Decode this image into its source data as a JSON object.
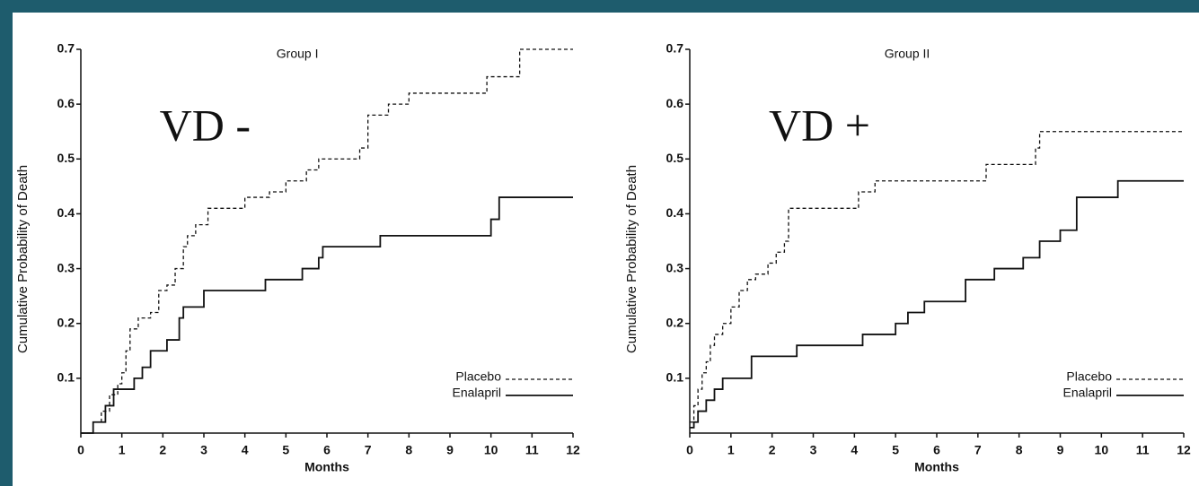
{
  "chart_data": [
    {
      "type": "line",
      "step": true,
      "title": "Group I",
      "annotation": "VD -",
      "xlabel": "Months",
      "ylabel": "Cumulative Probability of Death",
      "xlim": [
        0,
        12
      ],
      "xticks": [
        0,
        1,
        2,
        3,
        4,
        5,
        6,
        7,
        8,
        9,
        10,
        11,
        12
      ],
      "ylim": [
        0,
        0.7
      ],
      "yticks": [
        0.1,
        0.2,
        0.3,
        0.4,
        0.5,
        0.6,
        0.7
      ],
      "legend": "lower right",
      "series": [
        {
          "name": "Placebo",
          "color": "#111111",
          "style": "dashed",
          "x": [
            0,
            0.3,
            0.5,
            0.7,
            0.9,
            1.0,
            1.1,
            1.2,
            1.4,
            1.7,
            1.9,
            2.1,
            2.3,
            2.5,
            2.6,
            2.8,
            3.1,
            3.6,
            4.0,
            4.6,
            5.0,
            5.5,
            5.8,
            6.8,
            7.0,
            7.5,
            8.0,
            9.0,
            9.9,
            10.7,
            12.0
          ],
          "values": [
            0,
            0.02,
            0.04,
            0.07,
            0.09,
            0.11,
            0.15,
            0.19,
            0.21,
            0.22,
            0.26,
            0.27,
            0.3,
            0.34,
            0.36,
            0.38,
            0.41,
            0.41,
            0.43,
            0.44,
            0.46,
            0.48,
            0.5,
            0.52,
            0.58,
            0.6,
            0.62,
            0.62,
            0.65,
            0.7,
            0.7
          ]
        },
        {
          "name": "Enalapril",
          "color": "#111111",
          "style": "solid",
          "x": [
            0,
            0.3,
            0.6,
            0.8,
            1.3,
            1.5,
            1.7,
            2.1,
            2.4,
            2.5,
            3.0,
            4.5,
            5.4,
            5.8,
            5.9,
            7.3,
            10.0,
            10.2,
            12.0
          ],
          "values": [
            0,
            0.02,
            0.05,
            0.08,
            0.1,
            0.12,
            0.15,
            0.17,
            0.21,
            0.23,
            0.26,
            0.28,
            0.3,
            0.32,
            0.34,
            0.36,
            0.39,
            0.43,
            0.43
          ]
        }
      ]
    },
    {
      "type": "line",
      "step": true,
      "title": "Group II",
      "annotation": "VD +",
      "xlabel": "Months",
      "ylabel": "Cumulative Probability of Death",
      "xlim": [
        0,
        12
      ],
      "xticks": [
        0,
        1,
        2,
        3,
        4,
        5,
        6,
        7,
        8,
        9,
        10,
        11,
        12
      ],
      "ylim": [
        0,
        0.7
      ],
      "yticks": [
        0.1,
        0.2,
        0.3,
        0.4,
        0.5,
        0.6,
        0.7
      ],
      "legend": "lower right",
      "series": [
        {
          "name": "Placebo",
          "color": "#111111",
          "style": "dashed",
          "x": [
            0,
            0.1,
            0.2,
            0.3,
            0.4,
            0.5,
            0.6,
            0.8,
            1.0,
            1.2,
            1.4,
            1.6,
            1.9,
            2.1,
            2.3,
            2.4,
            4.1,
            4.5,
            7.2,
            8.4,
            8.5,
            12.0
          ],
          "values": [
            0.02,
            0.05,
            0.08,
            0.11,
            0.13,
            0.16,
            0.18,
            0.2,
            0.23,
            0.26,
            0.28,
            0.29,
            0.31,
            0.33,
            0.35,
            0.41,
            0.44,
            0.46,
            0.49,
            0.52,
            0.55,
            0.55
          ]
        },
        {
          "name": "Enalapril",
          "color": "#111111",
          "style": "solid",
          "x": [
            0,
            0.1,
            0.2,
            0.4,
            0.6,
            0.8,
            1.5,
            2.6,
            4.2,
            5.0,
            5.3,
            5.7,
            6.7,
            7.4,
            8.1,
            8.5,
            9.0,
            9.4,
            10.4,
            12.0
          ],
          "values": [
            0.01,
            0.02,
            0.04,
            0.06,
            0.08,
            0.1,
            0.14,
            0.16,
            0.18,
            0.2,
            0.22,
            0.24,
            0.28,
            0.3,
            0.32,
            0.35,
            0.37,
            0.43,
            0.46,
            0.46
          ]
        }
      ]
    }
  ]
}
